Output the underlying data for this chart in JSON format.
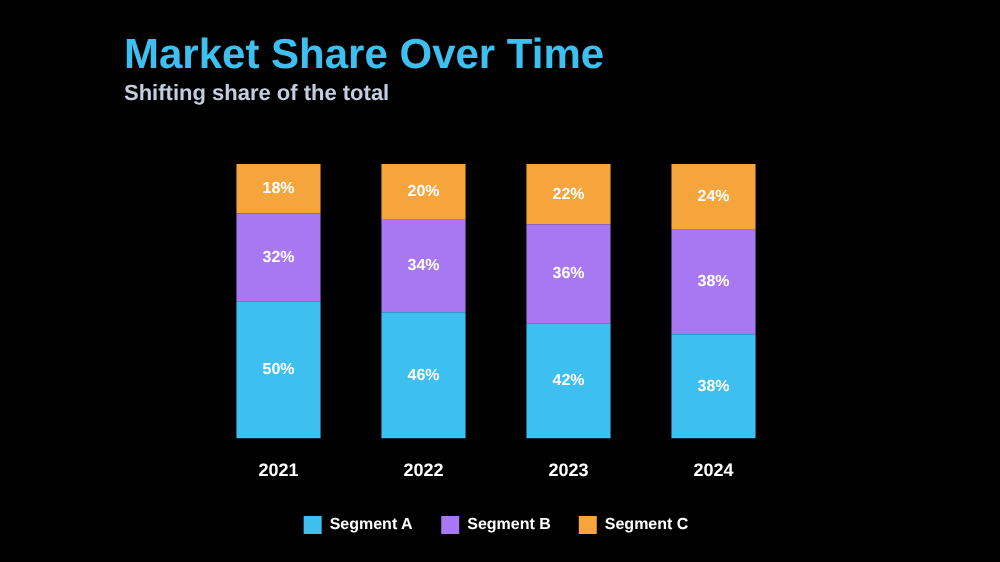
{
  "chart_data": {
    "type": "bar",
    "stacked": true,
    "title": "Market Share Over Time",
    "subtitle": "Shifting share of the total",
    "categories": [
      "2021",
      "2022",
      "2023",
      "2024"
    ],
    "series": [
      {
        "name": "Segment A",
        "color": "#3dbff0",
        "values": [
          50,
          46,
          42,
          38
        ],
        "value_labels": [
          "50%",
          "46%",
          "42%",
          "38%"
        ]
      },
      {
        "name": "Segment B",
        "color": "#a877f2",
        "values": [
          32,
          34,
          36,
          38
        ],
        "value_labels": [
          "32%",
          "34%",
          "36%",
          "38%"
        ]
      },
      {
        "name": "Segment C",
        "color": "#f5a53c",
        "values": [
          18,
          20,
          22,
          24
        ],
        "value_labels": [
          "18%",
          "20%",
          "22%",
          "24%"
        ]
      }
    ],
    "grid": false,
    "legend": "bottom",
    "tick_labels": "x"
  }
}
